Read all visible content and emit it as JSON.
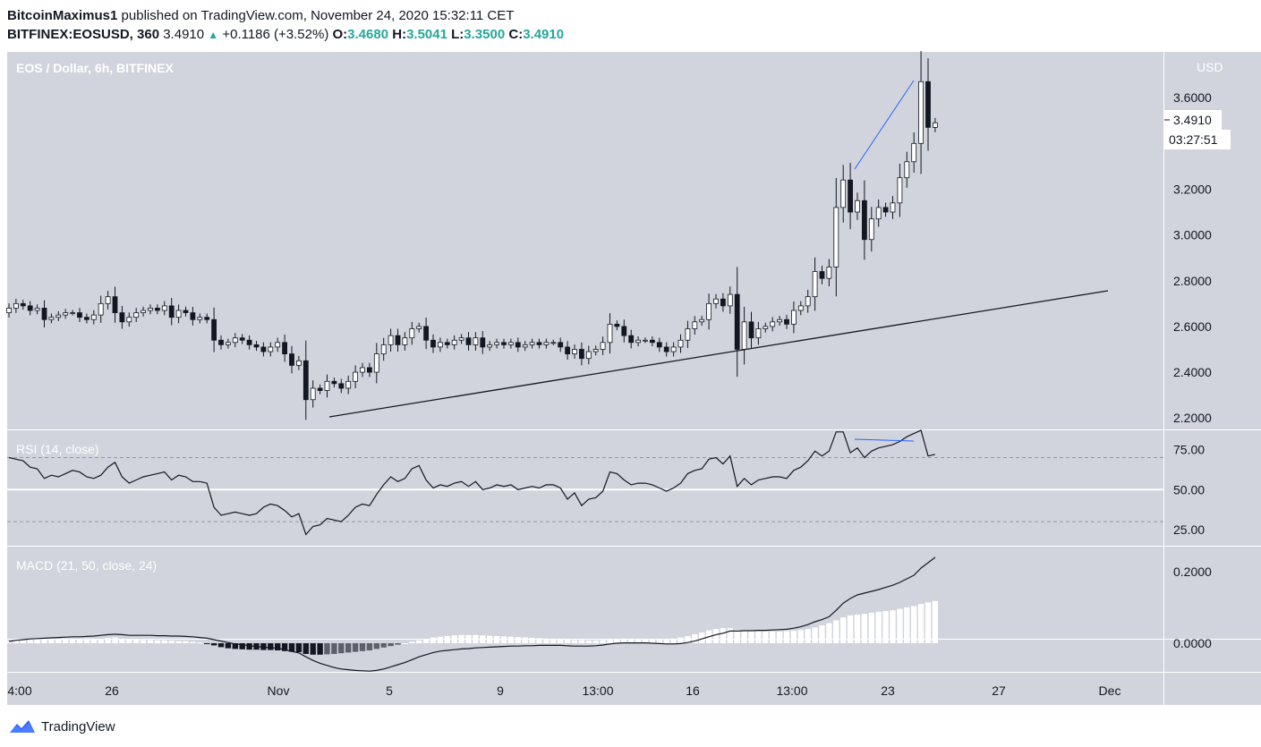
{
  "header": {
    "author": "BitcoinMaximus1",
    "published": "published on TradingView.com, November 24, 2020 15:32:11 CET",
    "symbol": "BITFINEX:EOSUSD, 360",
    "last": "3.4910",
    "change": "+0.1186 (+3.52%)",
    "o_label": "O:",
    "o": "3.4680",
    "h_label": "H:",
    "h": "3.5041",
    "l_label": "L:",
    "l": "3.3500",
    "c_label": "C:",
    "c": "3.4910"
  },
  "colors": {
    "pane_bg": "#d1d4dc",
    "up": "#ffffff",
    "down": "#131722",
    "trendline": "#131722",
    "divergence": "#2962ff",
    "macd_pos": "#ffffff",
    "macd_neg_dark": "#131722",
    "macd_neg_light": "#5d606b"
  },
  "footer": {
    "brand": "TradingView",
    "icon": "tradingview-logo-icon"
  },
  "chart_data": [
    {
      "type": "candlestick",
      "title": "EOS / Dollar, 6h, BITFINEX",
      "currency": "USD",
      "ylim": [
        2.15,
        3.8
      ],
      "yticks": [
        "3.6000",
        "3.2000",
        "3.0000",
        "2.8000",
        "2.6000",
        "2.4000",
        "2.2000"
      ],
      "last_price_label": "3.4910",
      "countdown": "03:27:51",
      "x_ticks": [
        "4:00",
        "26",
        "Nov",
        "5",
        "9",
        "13:00",
        "16",
        "13:00",
        "23",
        "27",
        "Dec"
      ],
      "close": [
        2.68,
        2.7,
        2.69,
        2.67,
        2.68,
        2.63,
        2.64,
        2.65,
        2.66,
        2.66,
        2.64,
        2.63,
        2.65,
        2.7,
        2.73,
        2.66,
        2.62,
        2.64,
        2.66,
        2.67,
        2.68,
        2.67,
        2.69,
        2.64,
        2.67,
        2.66,
        2.63,
        2.64,
        2.63,
        2.54,
        2.52,
        2.53,
        2.55,
        2.54,
        2.52,
        2.51,
        2.49,
        2.51,
        2.53,
        2.48,
        2.43,
        2.45,
        2.28,
        2.33,
        2.32,
        2.36,
        2.35,
        2.33,
        2.36,
        2.4,
        2.42,
        2.4,
        2.48,
        2.52,
        2.56,
        2.52,
        2.55,
        2.59,
        2.6,
        2.54,
        2.51,
        2.53,
        2.52,
        2.54,
        2.55,
        2.52,
        2.55,
        2.51,
        2.52,
        2.53,
        2.52,
        2.53,
        2.51,
        2.52,
        2.53,
        2.52,
        2.53,
        2.53,
        2.51,
        2.48,
        2.5,
        2.46,
        2.49,
        2.5,
        2.53,
        2.61,
        2.6,
        2.56,
        2.53,
        2.54,
        2.54,
        2.53,
        2.51,
        2.49,
        2.51,
        2.54,
        2.59,
        2.62,
        2.63,
        2.7,
        2.72,
        2.69,
        2.74,
        2.5,
        2.62,
        2.55,
        2.59,
        2.6,
        2.62,
        2.63,
        2.61,
        2.67,
        2.69,
        2.73,
        2.84,
        2.81,
        2.86,
        3.12,
        3.24,
        3.1,
        3.15,
        2.98,
        3.07,
        3.12,
        3.1,
        3.14,
        3.25,
        3.32,
        3.4,
        3.67,
        3.47,
        3.49
      ],
      "rsi": {
        "title": "RSI (14, close)",
        "yticks": [
          "75.00",
          "50.00",
          "25.00"
        ],
        "ylim": [
          15,
          87
        ],
        "values": [
          70,
          69,
          68,
          64,
          63,
          57,
          59,
          58,
          60,
          62,
          61,
          58,
          57,
          59,
          64,
          67,
          58,
          54,
          56,
          58,
          59,
          60,
          61,
          56,
          59,
          58,
          55,
          55,
          54,
          39,
          34,
          35,
          36,
          35,
          34,
          35,
          39,
          41,
          40,
          37,
          33,
          35,
          22,
          27,
          28,
          32,
          31,
          30,
          34,
          39,
          41,
          40,
          47,
          53,
          58,
          55,
          57,
          63,
          65,
          56,
          51,
          53,
          52,
          54,
          55,
          52,
          55,
          50,
          51,
          53,
          52,
          53,
          50,
          51,
          52,
          51,
          53,
          53,
          51,
          44,
          48,
          40,
          44,
          45,
          49,
          61,
          60,
          56,
          53,
          54,
          54,
          53,
          51,
          49,
          51,
          54,
          60,
          62,
          63,
          69,
          70,
          66,
          71,
          52,
          57,
          53,
          56,
          57,
          58,
          58,
          57,
          62,
          64,
          68,
          74,
          71,
          74,
          86,
          86,
          73,
          76,
          70,
          74,
          76,
          77,
          78,
          80,
          83,
          85,
          87,
          71,
          72
        ],
        "levels": [
          70,
          50,
          30
        ]
      },
      "macd": {
        "title": "MACD (21, 50, close, 24)",
        "yticks": [
          "0.2000",
          "0.0000"
        ],
        "ylim": [
          -0.08,
          0.27
        ],
        "line": [
          0.005,
          0.008,
          0.01,
          0.012,
          0.013,
          0.014,
          0.015,
          0.016,
          0.017,
          0.018,
          0.018,
          0.019,
          0.02,
          0.022,
          0.024,
          0.025,
          0.024,
          0.022,
          0.022,
          0.022,
          0.022,
          0.021,
          0.021,
          0.02,
          0.02,
          0.019,
          0.018,
          0.016,
          0.014,
          0.01,
          0.006,
          0.002,
          -0.002,
          -0.004,
          -0.007,
          -0.009,
          -0.011,
          -0.012,
          -0.014,
          -0.018,
          -0.023,
          -0.027,
          -0.038,
          -0.048,
          -0.056,
          -0.062,
          -0.068,
          -0.072,
          -0.074,
          -0.076,
          -0.077,
          -0.078,
          -0.076,
          -0.072,
          -0.066,
          -0.06,
          -0.054,
          -0.046,
          -0.038,
          -0.032,
          -0.026,
          -0.022,
          -0.02,
          -0.018,
          -0.016,
          -0.015,
          -0.013,
          -0.012,
          -0.011,
          -0.01,
          -0.009,
          -0.008,
          -0.008,
          -0.007,
          -0.007,
          -0.006,
          -0.006,
          -0.006,
          -0.006,
          -0.007,
          -0.008,
          -0.008,
          -0.008,
          -0.007,
          -0.005,
          -0.002,
          0.0,
          0.001,
          0.001,
          0.001,
          0.001,
          0.0,
          -0.001,
          -0.002,
          -0.002,
          -0.001,
          0.002,
          0.006,
          0.012,
          0.018,
          0.024,
          0.028,
          0.034,
          0.034,
          0.035,
          0.035,
          0.036,
          0.036,
          0.037,
          0.038,
          0.039,
          0.042,
          0.046,
          0.052,
          0.06,
          0.066,
          0.074,
          0.092,
          0.112,
          0.125,
          0.135,
          0.14,
          0.145,
          0.15,
          0.156,
          0.162,
          0.17,
          0.18,
          0.19,
          0.21,
          0.225,
          0.24
        ],
        "hist": [
          0.006,
          0.007,
          0.008,
          0.009,
          0.01,
          0.01,
          0.01,
          0.01,
          0.01,
          0.01,
          0.01,
          0.01,
          0.01,
          0.012,
          0.015,
          0.016,
          0.012,
          0.01,
          0.01,
          0.009,
          0.009,
          0.008,
          0.008,
          0.007,
          0.006,
          0.006,
          0.004,
          0.002,
          -0.001,
          -0.006,
          -0.011,
          -0.014,
          -0.016,
          -0.017,
          -0.018,
          -0.018,
          -0.019,
          -0.019,
          -0.02,
          -0.022,
          -0.024,
          -0.025,
          -0.03,
          -0.032,
          -0.032,
          -0.031,
          -0.03,
          -0.028,
          -0.026,
          -0.024,
          -0.022,
          -0.02,
          -0.016,
          -0.012,
          -0.008,
          -0.004,
          0.0,
          0.004,
          0.008,
          0.012,
          0.016,
          0.018,
          0.02,
          0.022,
          0.023,
          0.023,
          0.023,
          0.022,
          0.021,
          0.02,
          0.019,
          0.018,
          0.017,
          0.016,
          0.015,
          0.014,
          0.013,
          0.012,
          0.011,
          0.01,
          0.009,
          0.009,
          0.008,
          0.008,
          0.009,
          0.011,
          0.012,
          0.013,
          0.013,
          0.013,
          0.012,
          0.012,
          0.012,
          0.012,
          0.013,
          0.016,
          0.02,
          0.025,
          0.03,
          0.036,
          0.04,
          0.042,
          0.042,
          0.038,
          0.036,
          0.034,
          0.033,
          0.033,
          0.033,
          0.033,
          0.034,
          0.035,
          0.037,
          0.04,
          0.044,
          0.05,
          0.056,
          0.064,
          0.072,
          0.078,
          0.08,
          0.082,
          0.085,
          0.088,
          0.09,
          0.092,
          0.096,
          0.1,
          0.104,
          0.11,
          0.114,
          0.118
        ]
      }
    }
  ]
}
